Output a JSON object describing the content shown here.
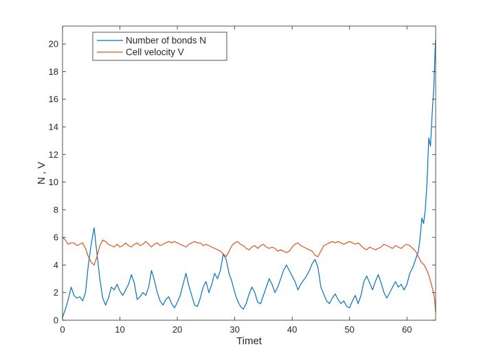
{
  "chart_data": {
    "type": "line",
    "title": "",
    "xlabel": "Timet",
    "ylabel": "N , V",
    "xlim": [
      0,
      65
    ],
    "ylim": [
      0,
      21.3
    ],
    "xticks": [
      "0",
      "10",
      "20",
      "30",
      "40",
      "50",
      "60"
    ],
    "yticks": [
      "0",
      "2",
      "4",
      "6",
      "8",
      "10",
      "12",
      "14",
      "16",
      "18",
      "20"
    ],
    "grid": false,
    "legend_position": "top-left",
    "series": [
      {
        "name": "Number of bonds N",
        "color": "#0072BD",
        "points": [
          [
            0,
            0.2
          ],
          [
            0.5,
            0.8
          ],
          [
            1,
            1.5
          ],
          [
            1.5,
            2.4
          ],
          [
            2,
            1.8
          ],
          [
            2.5,
            1.6
          ],
          [
            3,
            1.7
          ],
          [
            3.5,
            1.4
          ],
          [
            4,
            2.0
          ],
          [
            4.5,
            4.0
          ],
          [
            5,
            5.5
          ],
          [
            5.5,
            6.7
          ],
          [
            6,
            4.8
          ],
          [
            6.5,
            3.0
          ],
          [
            7,
            1.6
          ],
          [
            7.5,
            1.1
          ],
          [
            8,
            1.6
          ],
          [
            8.5,
            2.4
          ],
          [
            9,
            2.2
          ],
          [
            9.5,
            2.6
          ],
          [
            10,
            2.1
          ],
          [
            10.5,
            1.8
          ],
          [
            11,
            2.2
          ],
          [
            11.5,
            2.6
          ],
          [
            12,
            3.3
          ],
          [
            12.5,
            2.7
          ],
          [
            13,
            1.5
          ],
          [
            13.5,
            1.7
          ],
          [
            14,
            2.0
          ],
          [
            14.5,
            1.8
          ],
          [
            15,
            2.4
          ],
          [
            15.5,
            3.6
          ],
          [
            16,
            2.9
          ],
          [
            16.5,
            2.0
          ],
          [
            17,
            1.4
          ],
          [
            17.5,
            1.1
          ],
          [
            18,
            1.5
          ],
          [
            18.5,
            1.7
          ],
          [
            19,
            1.2
          ],
          [
            19.5,
            0.9
          ],
          [
            20,
            1.3
          ],
          [
            20.5,
            1.8
          ],
          [
            21,
            2.6
          ],
          [
            21.5,
            3.4
          ],
          [
            22,
            2.5
          ],
          [
            22.5,
            1.8
          ],
          [
            23,
            1.1
          ],
          [
            23.5,
            1.0
          ],
          [
            24,
            1.6
          ],
          [
            24.5,
            2.4
          ],
          [
            25,
            2.8
          ],
          [
            25.5,
            2.0
          ],
          [
            26,
            2.6
          ],
          [
            26.5,
            3.4
          ],
          [
            27,
            3.0
          ],
          [
            27.5,
            3.6
          ],
          [
            28,
            4.8
          ],
          [
            28.5,
            4.4
          ],
          [
            29,
            3.4
          ],
          [
            29.5,
            2.8
          ],
          [
            30,
            2.0
          ],
          [
            30.5,
            1.4
          ],
          [
            31,
            1.0
          ],
          [
            31.5,
            0.8
          ],
          [
            32,
            1.2
          ],
          [
            32.5,
            1.9
          ],
          [
            33,
            2.4
          ],
          [
            33.5,
            2.0
          ],
          [
            34,
            1.3
          ],
          [
            34.5,
            1.2
          ],
          [
            35,
            1.8
          ],
          [
            35.5,
            2.4
          ],
          [
            36,
            3.0
          ],
          [
            36.5,
            2.6
          ],
          [
            37,
            2.0
          ],
          [
            37.5,
            2.4
          ],
          [
            38,
            3.0
          ],
          [
            38.5,
            3.6
          ],
          [
            39,
            4.0
          ],
          [
            39.5,
            3.6
          ],
          [
            40,
            3.2
          ],
          [
            40.5,
            2.8
          ],
          [
            41,
            2.2
          ],
          [
            41.5,
            2.6
          ],
          [
            42,
            2.9
          ],
          [
            42.5,
            3.2
          ],
          [
            43,
            3.6
          ],
          [
            43.5,
            4.1
          ],
          [
            44,
            4.4
          ],
          [
            44.5,
            3.8
          ],
          [
            45,
            2.4
          ],
          [
            45.5,
            1.9
          ],
          [
            46,
            1.4
          ],
          [
            46.5,
            1.2
          ],
          [
            47,
            1.6
          ],
          [
            47.5,
            1.9
          ],
          [
            48,
            1.5
          ],
          [
            48.5,
            1.2
          ],
          [
            49,
            1.4
          ],
          [
            49.5,
            1.0
          ],
          [
            50,
            0.9
          ],
          [
            50.5,
            1.4
          ],
          [
            51,
            1.8
          ],
          [
            51.5,
            1.2
          ],
          [
            52,
            1.8
          ],
          [
            52.5,
            2.8
          ],
          [
            53,
            3.2
          ],
          [
            53.5,
            2.7
          ],
          [
            54,
            2.2
          ],
          [
            54.5,
            2.8
          ],
          [
            55,
            3.3
          ],
          [
            55.5,
            2.7
          ],
          [
            56,
            2.0
          ],
          [
            56.5,
            1.6
          ],
          [
            57,
            2.0
          ],
          [
            57.5,
            2.4
          ],
          [
            58,
            2.8
          ],
          [
            58.5,
            2.4
          ],
          [
            59,
            2.6
          ],
          [
            59.5,
            2.2
          ],
          [
            60,
            2.6
          ],
          [
            60.5,
            3.4
          ],
          [
            61,
            3.8
          ],
          [
            61.5,
            4.4
          ],
          [
            62,
            5.0
          ],
          [
            62.3,
            6.0
          ],
          [
            62.6,
            7.4
          ],
          [
            62.9,
            7.0
          ],
          [
            63.2,
            8.0
          ],
          [
            63.5,
            10.0
          ],
          [
            63.8,
            13.2
          ],
          [
            64.1,
            12.6
          ],
          [
            64.4,
            15.0
          ],
          [
            64.7,
            17.0
          ],
          [
            64.9,
            19.5
          ],
          [
            65,
            20.3
          ]
        ]
      },
      {
        "name": "Cell velocity V",
        "color": "#D95319",
        "points": [
          [
            0,
            6.0
          ],
          [
            0.5,
            5.8
          ],
          [
            1,
            5.5
          ],
          [
            1.5,
            5.6
          ],
          [
            2,
            5.6
          ],
          [
            2.5,
            5.4
          ],
          [
            3,
            5.5
          ],
          [
            3.5,
            5.6
          ],
          [
            4,
            5.2
          ],
          [
            4.5,
            4.6
          ],
          [
            5,
            4.2
          ],
          [
            5.5,
            4.0
          ],
          [
            6,
            4.6
          ],
          [
            6.5,
            5.4
          ],
          [
            7,
            5.8
          ],
          [
            7.5,
            5.7
          ],
          [
            8,
            5.5
          ],
          [
            8.5,
            5.4
          ],
          [
            9,
            5.3
          ],
          [
            9.5,
            5.5
          ],
          [
            10,
            5.3
          ],
          [
            10.5,
            5.4
          ],
          [
            11,
            5.6
          ],
          [
            11.5,
            5.4
          ],
          [
            12,
            5.3
          ],
          [
            12.5,
            5.5
          ],
          [
            13,
            5.6
          ],
          [
            13.5,
            5.4
          ],
          [
            14,
            5.5
          ],
          [
            14.5,
            5.7
          ],
          [
            15,
            5.5
          ],
          [
            15.5,
            5.3
          ],
          [
            16,
            5.5
          ],
          [
            16.5,
            5.6
          ],
          [
            17,
            5.4
          ],
          [
            17.5,
            5.5
          ],
          [
            18,
            5.6
          ],
          [
            18.5,
            5.7
          ],
          [
            19,
            5.6
          ],
          [
            19.5,
            5.7
          ],
          [
            20,
            5.6
          ],
          [
            20.5,
            5.5
          ],
          [
            21,
            5.4
          ],
          [
            21.5,
            5.3
          ],
          [
            22,
            5.5
          ],
          [
            22.5,
            5.6
          ],
          [
            23,
            5.7
          ],
          [
            23.5,
            5.6
          ],
          [
            24,
            5.6
          ],
          [
            24.5,
            5.4
          ],
          [
            25,
            5.5
          ],
          [
            25.5,
            5.4
          ],
          [
            26,
            5.3
          ],
          [
            26.5,
            5.2
          ],
          [
            27,
            5.1
          ],
          [
            27.5,
            5.0
          ],
          [
            28,
            4.8
          ],
          [
            28.5,
            4.6
          ],
          [
            29,
            5.0
          ],
          [
            29.5,
            5.4
          ],
          [
            30,
            5.6
          ],
          [
            30.5,
            5.7
          ],
          [
            31,
            5.5
          ],
          [
            31.5,
            5.4
          ],
          [
            32,
            5.2
          ],
          [
            32.5,
            5.1
          ],
          [
            33,
            5.3
          ],
          [
            33.5,
            5.4
          ],
          [
            34,
            5.2
          ],
          [
            34.5,
            5.4
          ],
          [
            35,
            5.5
          ],
          [
            35.5,
            5.3
          ],
          [
            36,
            5.2
          ],
          [
            36.5,
            5.3
          ],
          [
            37,
            5.2
          ],
          [
            37.5,
            5.0
          ],
          [
            38,
            5.1
          ],
          [
            38.5,
            5.0
          ],
          [
            39,
            4.9
          ],
          [
            39.5,
            5.0
          ],
          [
            40,
            5.3
          ],
          [
            40.5,
            5.5
          ],
          [
            41,
            5.6
          ],
          [
            41.5,
            5.4
          ],
          [
            42,
            5.3
          ],
          [
            42.5,
            5.2
          ],
          [
            43,
            5.1
          ],
          [
            43.5,
            5.0
          ],
          [
            44,
            4.7
          ],
          [
            44.5,
            4.6
          ],
          [
            45,
            5.0
          ],
          [
            45.5,
            5.4
          ],
          [
            46,
            5.5
          ],
          [
            46.5,
            5.6
          ],
          [
            47,
            5.7
          ],
          [
            47.5,
            5.6
          ],
          [
            48,
            5.7
          ],
          [
            48.5,
            5.6
          ],
          [
            49,
            5.5
          ],
          [
            49.5,
            5.6
          ],
          [
            50,
            5.7
          ],
          [
            50.5,
            5.6
          ],
          [
            51,
            5.5
          ],
          [
            51.5,
            5.6
          ],
          [
            52,
            5.4
          ],
          [
            52.5,
            5.2
          ],
          [
            53,
            5.1
          ],
          [
            53.5,
            5.3
          ],
          [
            54,
            5.2
          ],
          [
            54.5,
            5.1
          ],
          [
            55,
            5.2
          ],
          [
            55.5,
            5.3
          ],
          [
            56,
            5.5
          ],
          [
            56.5,
            5.4
          ],
          [
            57,
            5.3
          ],
          [
            57.5,
            5.2
          ],
          [
            58,
            5.4
          ],
          [
            58.5,
            5.3
          ],
          [
            59,
            5.2
          ],
          [
            59.5,
            5.4
          ],
          [
            60,
            5.5
          ],
          [
            60.5,
            5.4
          ],
          [
            61,
            5.2
          ],
          [
            61.5,
            5.0
          ],
          [
            62,
            4.6
          ],
          [
            62.5,
            4.2
          ],
          [
            63,
            4.0
          ],
          [
            63.5,
            3.6
          ],
          [
            64,
            3.0
          ],
          [
            64.5,
            2.2
          ],
          [
            64.8,
            1.6
          ],
          [
            65,
            0.6
          ]
        ]
      }
    ]
  }
}
